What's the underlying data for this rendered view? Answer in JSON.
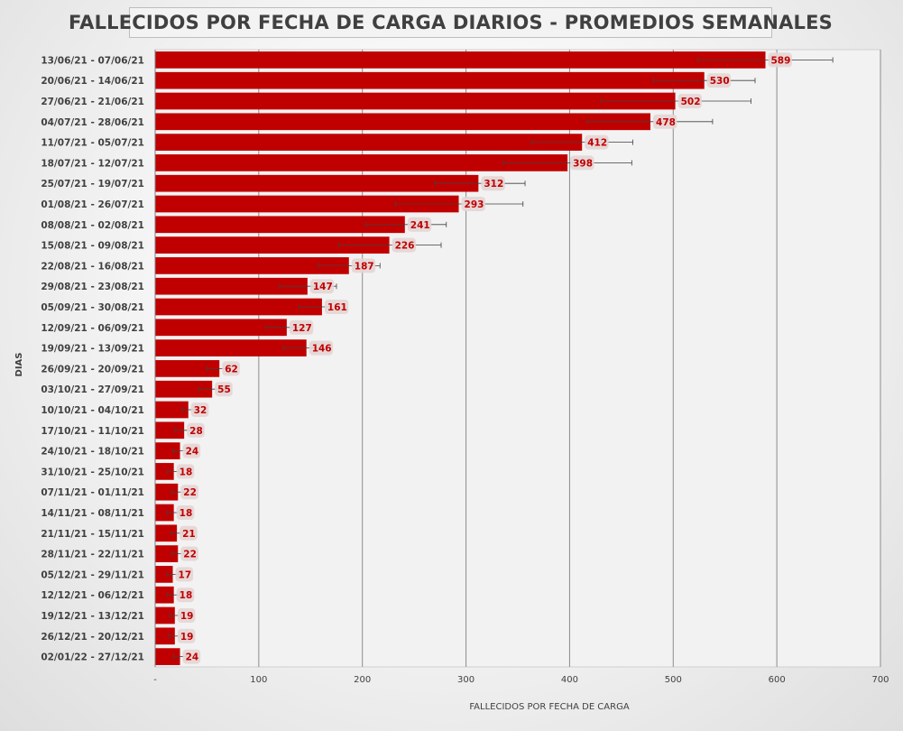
{
  "chart_data": {
    "type": "bar",
    "orientation": "horizontal",
    "title": "FALLECIDOS POR FECHA DE CARGA DIARIOS - PROMEDIOS SEMANALES",
    "xlabel": "FALLECIDOS POR FECHA DE CARGA",
    "ylabel": "DIAS",
    "xlim": [
      0,
      700
    ],
    "x_ticks": [
      "-",
      "100",
      "200",
      "300",
      "400",
      "500",
      "600",
      "700"
    ],
    "grid": "vertical",
    "bar_color": "#c00000",
    "label_color": "#c00000",
    "categories": [
      "13/06/21 - 07/06/21",
      "20/06/21 - 14/06/21",
      "27/06/21 - 21/06/21",
      "04/07/21 - 28/06/21",
      "11/07/21 - 05/07/21",
      "18/07/21 - 12/07/21",
      "25/07/21 - 19/07/21",
      "01/08/21 - 26/07/21",
      "08/08/21 - 02/08/21",
      "15/08/21 - 09/08/21",
      "22/08/21 - 16/08/21",
      "29/08/21 - 23/08/21",
      "05/09/21 - 30/08/21",
      "12/09/21 - 06/09/21",
      "19/09/21 - 13/09/21",
      "26/09/21 - 20/09/21",
      "03/10/21 - 27/09/21",
      "10/10/21 - 04/10/21",
      "17/10/21 - 11/10/21",
      "24/10/21 - 18/10/21",
      "31/10/21 - 25/10/21",
      "07/11/21 - 01/11/21",
      "14/11/21 - 08/11/21",
      "21/11/21 - 15/11/21",
      "28/11/21 - 22/11/21",
      "05/12/21 - 29/11/21",
      "12/12/21 - 06/12/21",
      "19/12/21 - 13/12/21",
      "26/12/21 - 20/12/21",
      "02/01/22 - 27/12/21"
    ],
    "values": [
      589,
      530,
      502,
      478,
      412,
      398,
      312,
      293,
      241,
      226,
      187,
      147,
      161,
      127,
      146,
      62,
      55,
      32,
      28,
      24,
      18,
      22,
      18,
      21,
      22,
      17,
      18,
      19,
      19,
      24
    ],
    "value_labels": [
      "589",
      "530",
      "502",
      "478",
      "412",
      "398",
      "312",
      "293",
      "241",
      "226",
      "187",
      "147",
      "161",
      "127",
      "146",
      "62",
      "55",
      "32",
      "28",
      "24",
      "18",
      "22",
      "18",
      "21",
      "22",
      "17",
      "18",
      "19",
      "19",
      "24"
    ],
    "error_bars": [
      [
        524,
        654
      ],
      [
        481,
        579
      ],
      [
        430,
        575
      ],
      [
        417,
        538
      ],
      [
        363,
        461
      ],
      [
        336,
        460
      ],
      [
        270,
        357
      ],
      [
        232,
        355
      ],
      [
        203,
        281
      ],
      [
        177,
        276
      ],
      [
        157,
        217
      ],
      [
        120,
        175
      ],
      [
        139,
        183
      ],
      [
        107,
        148
      ],
      [
        124,
        169
      ],
      [
        50,
        73
      ],
      [
        42,
        68
      ],
      [
        26,
        39
      ],
      [
        19,
        37
      ],
      [
        17,
        31
      ],
      [
        12,
        23
      ],
      [
        16,
        28
      ],
      [
        11,
        24
      ],
      [
        15,
        27
      ],
      [
        16,
        28
      ],
      [
        11,
        23
      ],
      [
        12,
        24
      ],
      [
        14,
        25
      ],
      [
        13,
        25
      ],
      [
        18,
        30
      ]
    ]
  }
}
